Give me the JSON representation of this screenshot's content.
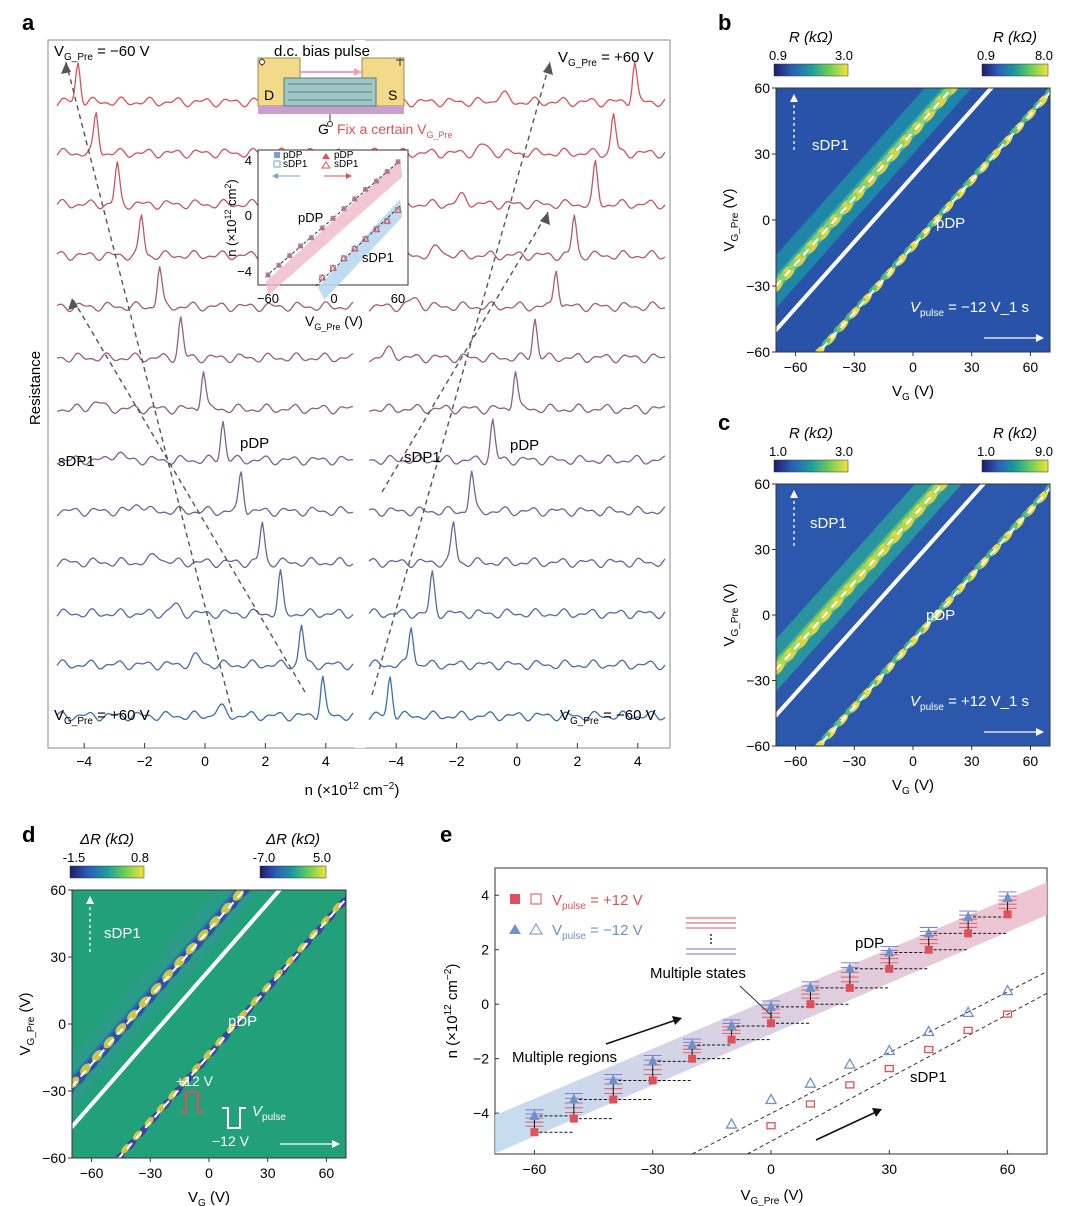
{
  "panel_labels": {
    "a": "a",
    "b": "b",
    "c": "c",
    "d": "d",
    "e": "e"
  },
  "colors": {
    "red_series": "#e0505a",
    "blue_series": "#3b6fb0",
    "pink_band": "#f0b8c8",
    "blue_band": "#b8d8f0",
    "cmap": [
      "#2b1f8a",
      "#2c5fb8",
      "#1b9c9c",
      "#6fcf57",
      "#f6e13c"
    ]
  },
  "chart_data": [
    {
      "panel": "a",
      "type": "line",
      "title": "",
      "ylabel": "Resistance",
      "xlabel_main": "n (×10",
      "xlabel_sup": "12",
      "xlabel_tail": " cm",
      "xlabel_sup2": "−2",
      "xlabel_end": ")",
      "xlim": [
        -5,
        5
      ],
      "xticks": [
        "−4",
        "−2",
        "0",
        "2",
        "4"
      ],
      "xtick_values": [
        -4,
        -2,
        0,
        2,
        4
      ],
      "left_top_label": "V",
      "left_top_sub": "G_Pre",
      "left_top_val": " = −60 V",
      "left_bottom_val": " = +60 V",
      "right_top_val": " = +60 V",
      "right_bottom_val": " = −60 V",
      "sdp1_label": "sDP1",
      "pdp_label": "pDP",
      "left_pdp_peaks": [
        -4.2,
        -3.6,
        -2.9,
        -2.1,
        -1.5,
        -0.8,
        -0.05,
        0.6,
        1.2,
        1.9,
        2.5,
        3.2,
        3.9
      ],
      "left_sdp1_peaks": [
        null,
        null,
        null,
        null,
        null,
        null,
        -3.6,
        -2.9,
        -2.2,
        -1.6,
        -1.0,
        -0.3,
        0.5
      ],
      "right_pdp_peaks": [
        3.9,
        3.2,
        2.6,
        1.9,
        1.3,
        0.6,
        -0.05,
        -0.8,
        -1.5,
        -2.1,
        -2.8,
        -3.5,
        -4.2
      ],
      "right_sdp1_peaks": [
        -0.5,
        -1.1,
        -1.8,
        -2.6,
        -3.4,
        -4.2,
        null,
        null,
        null,
        null,
        null,
        null,
        null
      ]
    },
    {
      "panel": "a-inset",
      "type": "scatter",
      "schematic_title": "d.c. bias pulse",
      "d_label": "D",
      "s_label": "S",
      "g_label": "G",
      "fix_label": "Fix a certain V",
      "fix_sub": "G_Pre",
      "legend": [
        "pDP",
        "sDP1",
        "pDP",
        "sDP1"
      ],
      "xticks": [
        "−60",
        "0",
        "60"
      ],
      "yticks": [
        "4",
        "0",
        "−4"
      ],
      "xlabel": "V",
      "xlabel_sub": "G_Pre",
      "xlabel_unit": " (V)",
      "ylabel": "n (×10",
      "ylabel_sup": "12",
      "ylabel_tail": " cm",
      "ylabel_sup2": "2",
      "ylabel_end": ")",
      "pdp_label": "pDP",
      "sdp1_label": "sDP1",
      "x": [
        -60,
        -50,
        -40,
        -30,
        -20,
        -10,
        0,
        10,
        20,
        30,
        40,
        50,
        60
      ],
      "pdp_n": [
        -4.2,
        -3.5,
        -2.8,
        -2.1,
        -1.5,
        -0.8,
        -0.1,
        0.6,
        1.3,
        2.0,
        2.6,
        3.3,
        4.0
      ],
      "sdp1_n": [
        null,
        null,
        null,
        null,
        null,
        -4.4,
        -3.7,
        -3.0,
        -2.3,
        -1.6,
        -0.9,
        -0.3,
        0.5
      ]
    },
    {
      "panel": "b",
      "type": "heatmap",
      "cbar1_label": "R (kΩ)",
      "cbar1_range": [
        "0.9",
        "3.0"
      ],
      "cbar2_label": "R (kΩ)",
      "cbar2_range": [
        "0.9",
        "8.0"
      ],
      "xlabel": "V",
      "xlabel_sub": "G",
      "xlabel_unit": " (V)",
      "ylabel": "V",
      "ylabel_sub": "G_Pre",
      "ylabel_unit": " (V)",
      "xticks": [
        "−60",
        "−30",
        "0",
        "30",
        "60"
      ],
      "yticks": [
        "60",
        "30",
        "0",
        "−30",
        "−60"
      ],
      "xlim": [
        -70,
        70
      ],
      "ylim": [
        -60,
        60
      ],
      "sdp1_label": "sDP1",
      "pdp_label": "pDP",
      "pulse_label": "V",
      "pulse_sub": "pulse",
      "pulse_val": " = −12 V_1 s"
    },
    {
      "panel": "c",
      "type": "heatmap",
      "cbar1_label": "R (kΩ)",
      "cbar1_range": [
        "1.0",
        "3.0"
      ],
      "cbar2_label": "R (kΩ)",
      "cbar2_range": [
        "1.0",
        "9.0"
      ],
      "xlabel": "V",
      "xlabel_sub": "G",
      "xlabel_unit": " (V)",
      "ylabel": "V",
      "ylabel_sub": "G_Pre",
      "ylabel_unit": " (V)",
      "xticks": [
        "−60",
        "−30",
        "0",
        "30",
        "60"
      ],
      "yticks": [
        "60",
        "30",
        "0",
        "−30",
        "−60"
      ],
      "xlim": [
        -70,
        70
      ],
      "ylim": [
        -60,
        60
      ],
      "sdp1_label": "sDP1",
      "pdp_label": "pDP",
      "pulse_label": "V",
      "pulse_sub": "pulse",
      "pulse_val": " = +12 V_1 s"
    },
    {
      "panel": "d",
      "type": "heatmap",
      "cbar1_label": "ΔR (kΩ)",
      "cbar1_range": [
        "-1.5",
        "0.8"
      ],
      "cbar2_label": "ΔR (kΩ)",
      "cbar2_range": [
        "-7.0",
        "5.0"
      ],
      "xlabel": "V",
      "xlabel_sub": "G",
      "xlabel_unit": " (V)",
      "ylabel": "V",
      "ylabel_sub": "G_Pre",
      "ylabel_unit": " (V)",
      "xticks": [
        "−60",
        "−30",
        "0",
        "30",
        "60"
      ],
      "yticks": [
        "60",
        "30",
        "0",
        "−30",
        "−60"
      ],
      "xlim": [
        -70,
        70
      ],
      "ylim": [
        -60,
        60
      ],
      "sdp1_label": "sDP1",
      "pdp_label": "pDP",
      "plus_label": "+12 V",
      "minus_label": "−12 V",
      "pulse_label": "V",
      "pulse_sub": "pulse"
    },
    {
      "panel": "e",
      "type": "scatter",
      "xlabel": "V",
      "xlabel_sub": "G_Pre",
      "xlabel_unit": " (V)",
      "ylabel": "n (×10",
      "ylabel_sup": "12",
      "ylabel_tail": " cm",
      "ylabel_sup2": "−2",
      "ylabel_end": ")",
      "xlim": [
        -70,
        70
      ],
      "ylim": [
        -5.5,
        5
      ],
      "xticks": [
        "−60",
        "−30",
        "0",
        "30",
        "60"
      ],
      "xtick_values": [
        -60,
        -30,
        0,
        30,
        60
      ],
      "yticks": [
        "4",
        "2",
        "0",
        "−2",
        "−4"
      ],
      "ytick_values": [
        4,
        2,
        0,
        -2,
        -4
      ],
      "legend_red": "V",
      "legend_red_sub": "pulse",
      "legend_red_val": " = +12 V",
      "legend_blue": "V",
      "legend_blue_sub": "pulse",
      "legend_blue_val": " = −12 V",
      "label_pdp": "pDP",
      "label_sdp1": "sDP1",
      "label_multiple_states": "Multiple states",
      "label_multiple_regions": "Multiple regions",
      "x": [
        -60,
        -50,
        -40,
        -30,
        -20,
        -10,
        0,
        10,
        20,
        30,
        40,
        50,
        60
      ],
      "pdp_plus": [
        -4.7,
        -4.2,
        -3.5,
        -2.8,
        -2.0,
        -1.3,
        -0.7,
        0.0,
        0.6,
        1.3,
        2.0,
        2.6,
        3.3
      ],
      "pdp_minus": [
        -4.1,
        -3.5,
        -2.8,
        -2.1,
        -1.5,
        -0.8,
        -0.1,
        0.6,
        1.3,
        1.9,
        2.6,
        3.2,
        3.9
      ],
      "sdp1_plus_x": [
        0,
        10,
        20,
        30,
        40,
        50,
        60
      ],
      "sdp1_plus": [
        -4.5,
        -3.7,
        -3.0,
        -2.4,
        -1.7,
        -1.0,
        -0.4
      ],
      "sdp1_minus_x": [
        -10,
        0,
        10,
        20,
        30,
        40,
        50,
        60
      ],
      "sdp1_minus": [
        -4.4,
        -3.5,
        -2.9,
        -2.2,
        -1.7,
        -1.0,
        -0.3,
        0.5
      ]
    }
  ]
}
